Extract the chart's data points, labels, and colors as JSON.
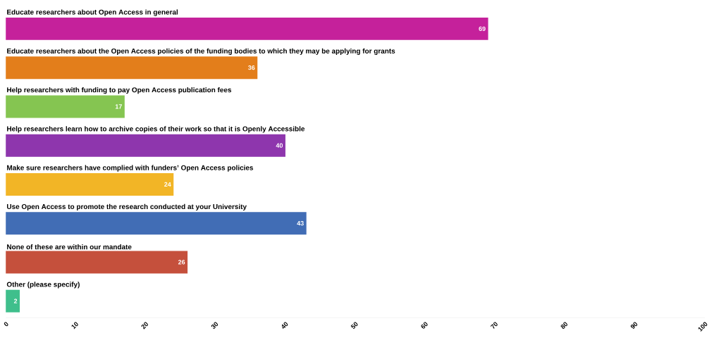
{
  "chart_data": {
    "type": "bar",
    "orientation": "horizontal",
    "data_labels": true,
    "categories": [
      "Educate researchers about Open Access in general",
      "Educate researchers about the Open Access policies of the funding bodies to which they may be applying for grants",
      "Help researchers with funding to pay Open Access publication fees",
      "Help researchers learn how to archive copies of their work so that it is Openly Accessible",
      "Make sure researchers have complied with funders’ Open Access policies",
      "Use Open Access to promote the research conducted at your University",
      "None of these are within our mandate",
      "Other (please specify)"
    ],
    "values": [
      69,
      36,
      17,
      40,
      24,
      43,
      26,
      2
    ],
    "colors": [
      "#c5219b",
      "#e37e1b",
      "#85c551",
      "#8e36ad",
      "#f2b526",
      "#416db5",
      "#c5503c",
      "#3fbf8c"
    ],
    "xlim": [
      0,
      100
    ],
    "xticks": [
      0,
      10,
      20,
      30,
      40,
      50,
      60,
      70,
      80,
      90,
      100
    ]
  }
}
